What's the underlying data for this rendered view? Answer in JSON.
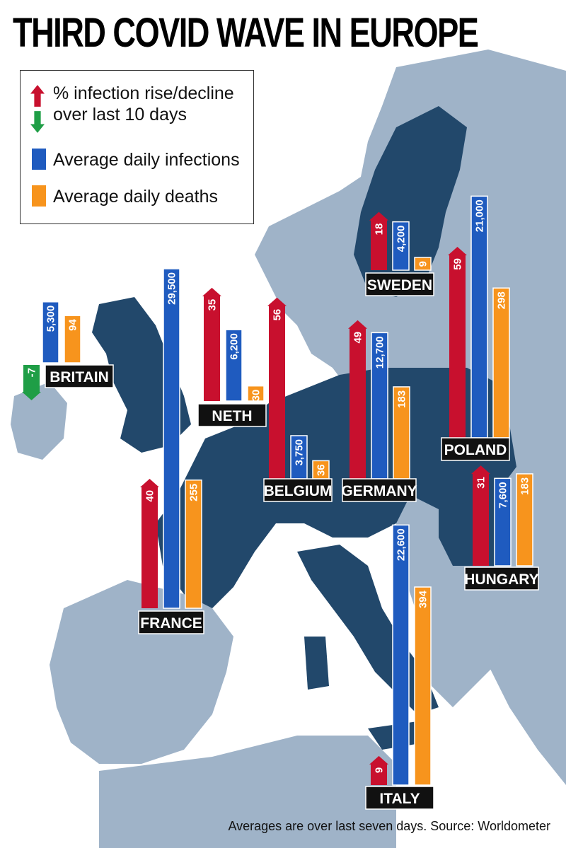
{
  "title": "THIRD COVID WAVE IN EUROPE",
  "legend": {
    "rise": "% infection rise/decline",
    "rise2": "over last 10 days",
    "infections": "Average daily infections",
    "deaths": "Average daily deaths"
  },
  "footer": "Averages are over last seven days.   Source: Worldometer",
  "colors": {
    "rise": "#c8102e",
    "decline": "#1f9e46",
    "infections": "#1f5bbf",
    "deaths": "#f7941d",
    "land_focus": "#22486b",
    "land_other": "#9fb3c8",
    "label_bg": "#111111"
  },
  "chart_data": {
    "type": "bar",
    "series": [
      {
        "name": "% infection rise/decline over last 10 days",
        "key": "rise"
      },
      {
        "name": "Average daily infections",
        "key": "infections"
      },
      {
        "name": "Average daily deaths",
        "key": "deaths"
      }
    ],
    "countries": [
      {
        "name": "BRITAIN",
        "rise": -7,
        "rise_label": "-7",
        "infections": 5300,
        "infections_label": "5,300",
        "deaths": 94,
        "deaths_label": "94"
      },
      {
        "name": "FRANCE",
        "rise": 40,
        "rise_label": "40",
        "infections": 29500,
        "infections_label": "29,500",
        "deaths": 255,
        "deaths_label": "255"
      },
      {
        "name": "NETH",
        "rise": 35,
        "rise_label": "35",
        "infections": 6200,
        "infections_label": "6,200",
        "deaths": 30,
        "deaths_label": "30"
      },
      {
        "name": "BELGIUM",
        "rise": 56,
        "rise_label": "56",
        "infections": 3750,
        "infections_label": "3,750",
        "deaths": 36,
        "deaths_label": "36"
      },
      {
        "name": "GERMANY",
        "rise": 49,
        "rise_label": "49",
        "infections": 12700,
        "infections_label": "12,700",
        "deaths": 183,
        "deaths_label": "183"
      },
      {
        "name": "SWEDEN",
        "rise": 18,
        "rise_label": "18",
        "infections": 4200,
        "infections_label": "4,200",
        "deaths": 9,
        "deaths_label": "9"
      },
      {
        "name": "POLAND",
        "rise": 59,
        "rise_label": "59",
        "infections": 21000,
        "infections_label": "21,000",
        "deaths": 298,
        "deaths_label": "298"
      },
      {
        "name": "HUNGARY",
        "rise": 31,
        "rise_label": "31",
        "infections": 7600,
        "infections_label": "7,600",
        "deaths": 183,
        "deaths_label": "183"
      },
      {
        "name": "ITALY",
        "rise": 9,
        "rise_label": "9",
        "infections": 22600,
        "infections_label": "22,600",
        "deaths": 394,
        "deaths_label": "394"
      }
    ]
  }
}
